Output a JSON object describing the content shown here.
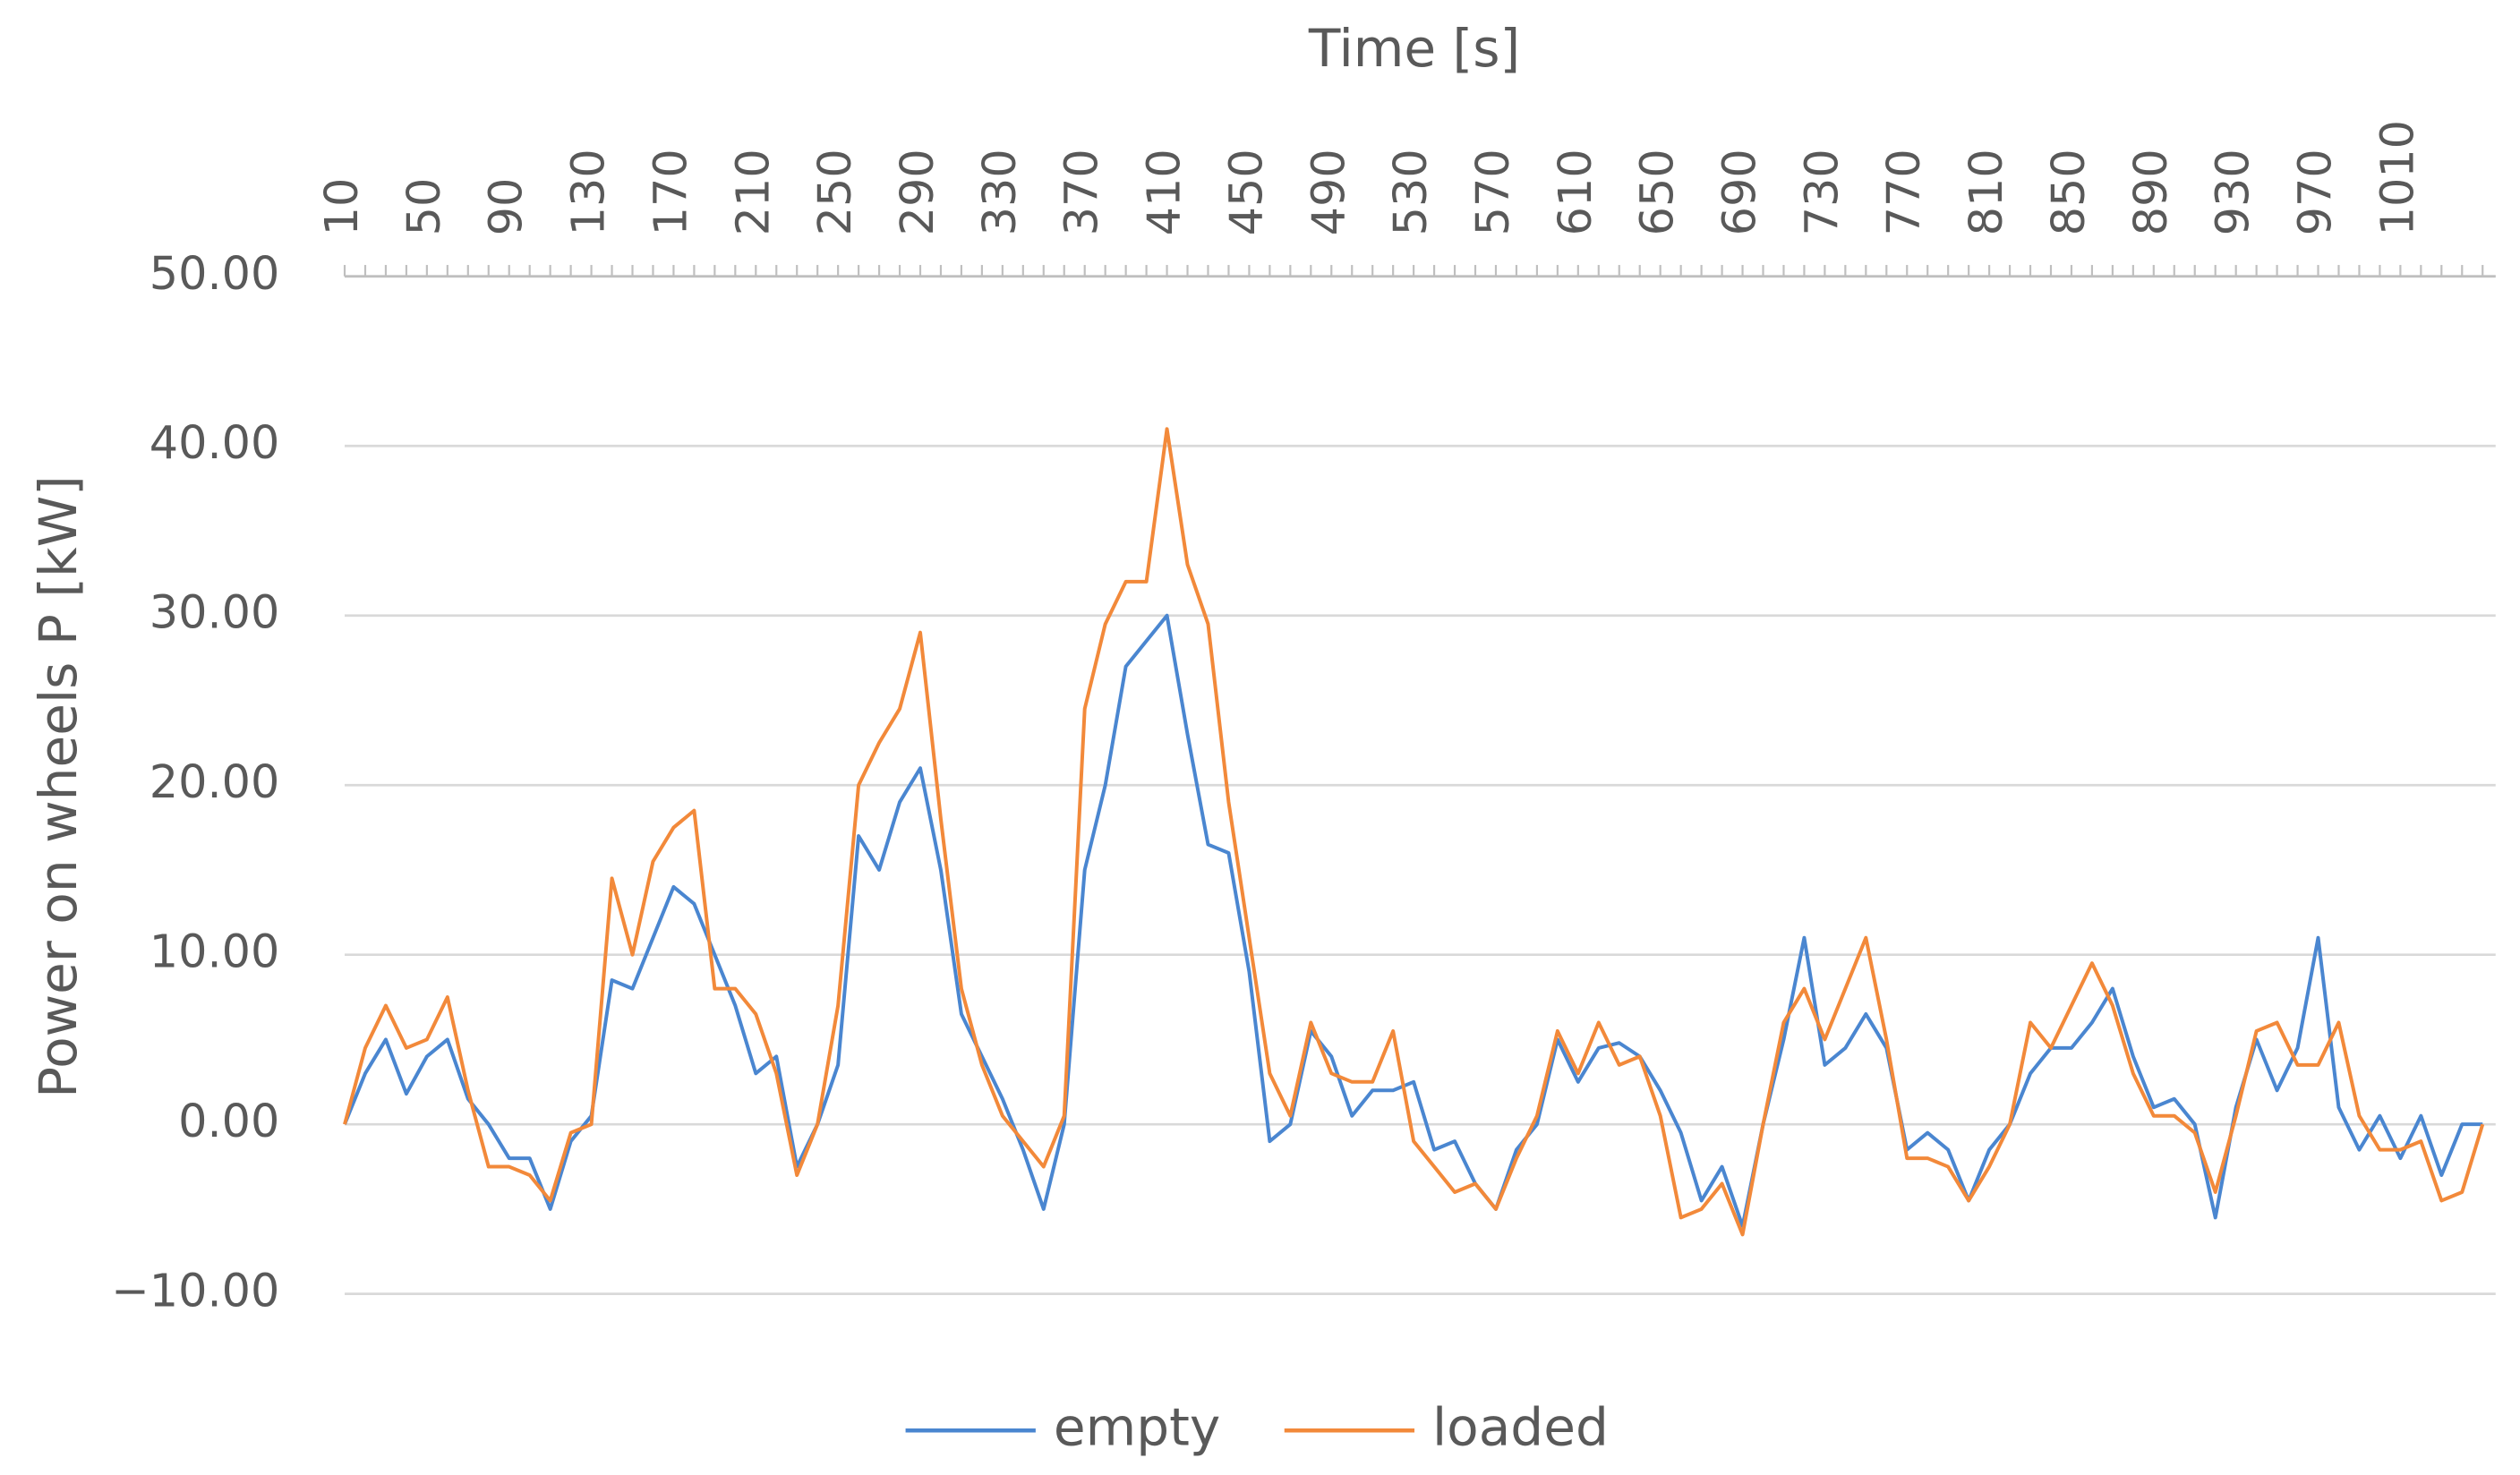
{
  "chart_data": {
    "type": "line",
    "x_label": "Time [s]",
    "y_label": "Power on wheels P [kW]",
    "categories": [
      "10",
      null,
      null,
      null,
      "50",
      null,
      null,
      null,
      "90",
      null,
      null,
      null,
      "130",
      null,
      null,
      null,
      "170",
      null,
      null,
      null,
      "210",
      null,
      null,
      null,
      "250",
      null,
      null,
      null,
      "290",
      null,
      null,
      null,
      "330",
      null,
      null,
      null,
      "370",
      null,
      null,
      null,
      "410",
      null,
      null,
      null,
      "450",
      null,
      null,
      null,
      "490",
      null,
      null,
      null,
      "530",
      null,
      null,
      null,
      "570",
      null,
      null,
      null,
      "610",
      null,
      null,
      null,
      "650",
      null,
      null,
      null,
      "690",
      null,
      null,
      null,
      "730",
      null,
      null,
      null,
      "770",
      null,
      null,
      null,
      "810",
      null,
      null,
      null,
      "850",
      null,
      null,
      null,
      "890",
      null,
      null,
      null,
      "930",
      null,
      null,
      null,
      "970",
      null,
      null,
      null,
      "1010",
      null,
      null,
      null,
      null
    ],
    "series": [
      {
        "name": "empty",
        "color": "#4a86d0",
        "values": [
          0,
          3,
          5,
          1.8,
          4,
          5,
          1.5,
          0,
          -2,
          -2,
          -5,
          -1,
          0.5,
          8.5,
          8,
          11,
          14,
          13,
          10,
          7,
          3,
          4,
          -2.5,
          0,
          3.5,
          17,
          15,
          19,
          21,
          15,
          6.5,
          4,
          1.5,
          -1.5,
          -5,
          0,
          15,
          20,
          27,
          28.5,
          30,
          23,
          16.5,
          16,
          9,
          -1,
          0,
          5.5,
          4,
          0.5,
          2,
          2,
          2.5,
          -1.5,
          -1,
          -3.5,
          -5,
          -1.5,
          0,
          5,
          2.5,
          4.5,
          4.8,
          4,
          2,
          -0.5,
          -4.5,
          -2.5,
          -6,
          0,
          5,
          11,
          3.5,
          4.5,
          6.5,
          4.5,
          -1.5,
          -0.5,
          -1.5,
          -4.5,
          -1.5,
          0,
          3,
          4.5,
          4.5,
          6,
          8,
          4,
          1,
          1.5,
          0,
          -5.5,
          1,
          5,
          2,
          4.5,
          11,
          1,
          -1.5,
          0.5,
          -2,
          0.5,
          -3,
          0,
          0
        ]
      },
      {
        "name": "loaded",
        "color": "#f2893a",
        "values": [
          0,
          4.5,
          7,
          4.5,
          5,
          7.5,
          2,
          -2.5,
          -2.5,
          -3,
          -4.5,
          -0.5,
          0,
          14.5,
          10,
          15.5,
          17.5,
          18.5,
          8,
          8,
          6.5,
          3,
          -3,
          0,
          7,
          20,
          22.5,
          24.5,
          29,
          18,
          8,
          3.5,
          0.5,
          -1,
          -2.5,
          0.5,
          24.5,
          29.5,
          32,
          32,
          41,
          33,
          29.5,
          19,
          11,
          3,
          0.5,
          6,
          3,
          2.5,
          2.5,
          5.5,
          -1,
          -2.5,
          -4,
          -3.5,
          -5,
          -2,
          0.5,
          5.5,
          3,
          6,
          3.5,
          4,
          0.5,
          -5.5,
          -5,
          -3.5,
          -6.5,
          0,
          6,
          8,
          5,
          8,
          11,
          5,
          -2,
          -2,
          -2.5,
          -4.5,
          -2.5,
          0,
          6,
          4.5,
          7,
          9.5,
          7,
          3,
          0.5,
          0.5,
          -0.5,
          -4,
          0.5,
          5.5,
          6,
          3.5,
          3.5,
          6,
          0.5,
          -1.5,
          -1.5,
          -1,
          -4.5,
          -4,
          0
        ]
      }
    ],
    "ylim": [
      -10,
      50
    ],
    "yticks": [
      {
        "value": -10,
        "label": "−10.00"
      },
      {
        "value": 0,
        "label": "0.00"
      },
      {
        "value": 10,
        "label": "10.00"
      },
      {
        "value": 20,
        "label": "20.00"
      },
      {
        "value": 30,
        "label": "30.00"
      },
      {
        "value": 40,
        "label": "40.00"
      },
      {
        "value": 50,
        "label": "50.00"
      }
    ],
    "grid": true,
    "legend": "bottom"
  }
}
